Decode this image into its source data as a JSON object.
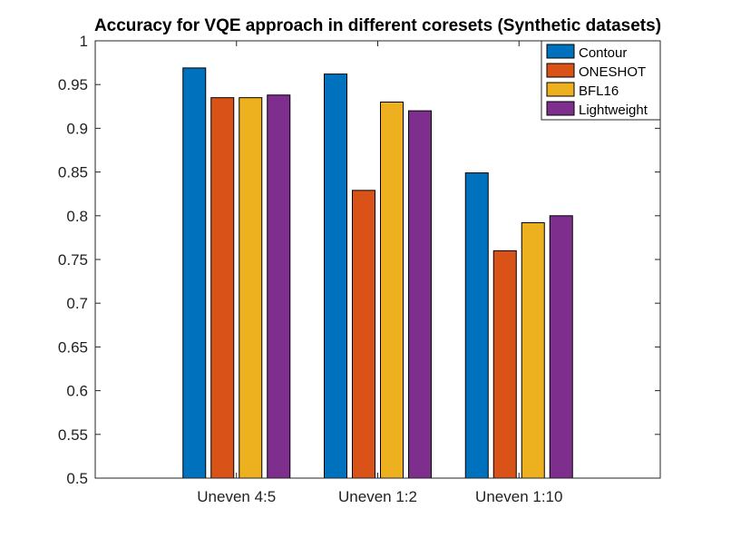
{
  "chart_data": {
    "type": "bar",
    "title": "Accuracy for VQE approach in different coresets (Synthetic datasets)",
    "xlabel": "",
    "ylabel": "",
    "categories": [
      "Uneven 4:5",
      "Uneven 1:2",
      "Uneven 1:10"
    ],
    "ylim": [
      0.5,
      1
    ],
    "yticks": [
      0.5,
      0.55,
      0.6,
      0.65,
      0.7,
      0.75,
      0.8,
      0.85,
      0.9,
      0.95,
      1
    ],
    "ytick_labels": [
      "0.5",
      "0.55",
      "0.6",
      "0.65",
      "0.7",
      "0.75",
      "0.8",
      "0.85",
      "0.9",
      "0.95",
      "1"
    ],
    "grid": false,
    "legend_position": "top-right",
    "series": [
      {
        "name": "Contour",
        "color": "#0072BD",
        "values": [
          0.969,
          0.962,
          0.849
        ]
      },
      {
        "name": "ONESHOT",
        "color": "#D95319",
        "values": [
          0.935,
          0.829,
          0.76
        ]
      },
      {
        "name": "BFL16",
        "color": "#EDB120",
        "values": [
          0.935,
          0.93,
          0.792
        ]
      },
      {
        "name": "Lightweight",
        "color": "#7E2F8E",
        "values": [
          0.938,
          0.92,
          0.8
        ]
      }
    ]
  }
}
